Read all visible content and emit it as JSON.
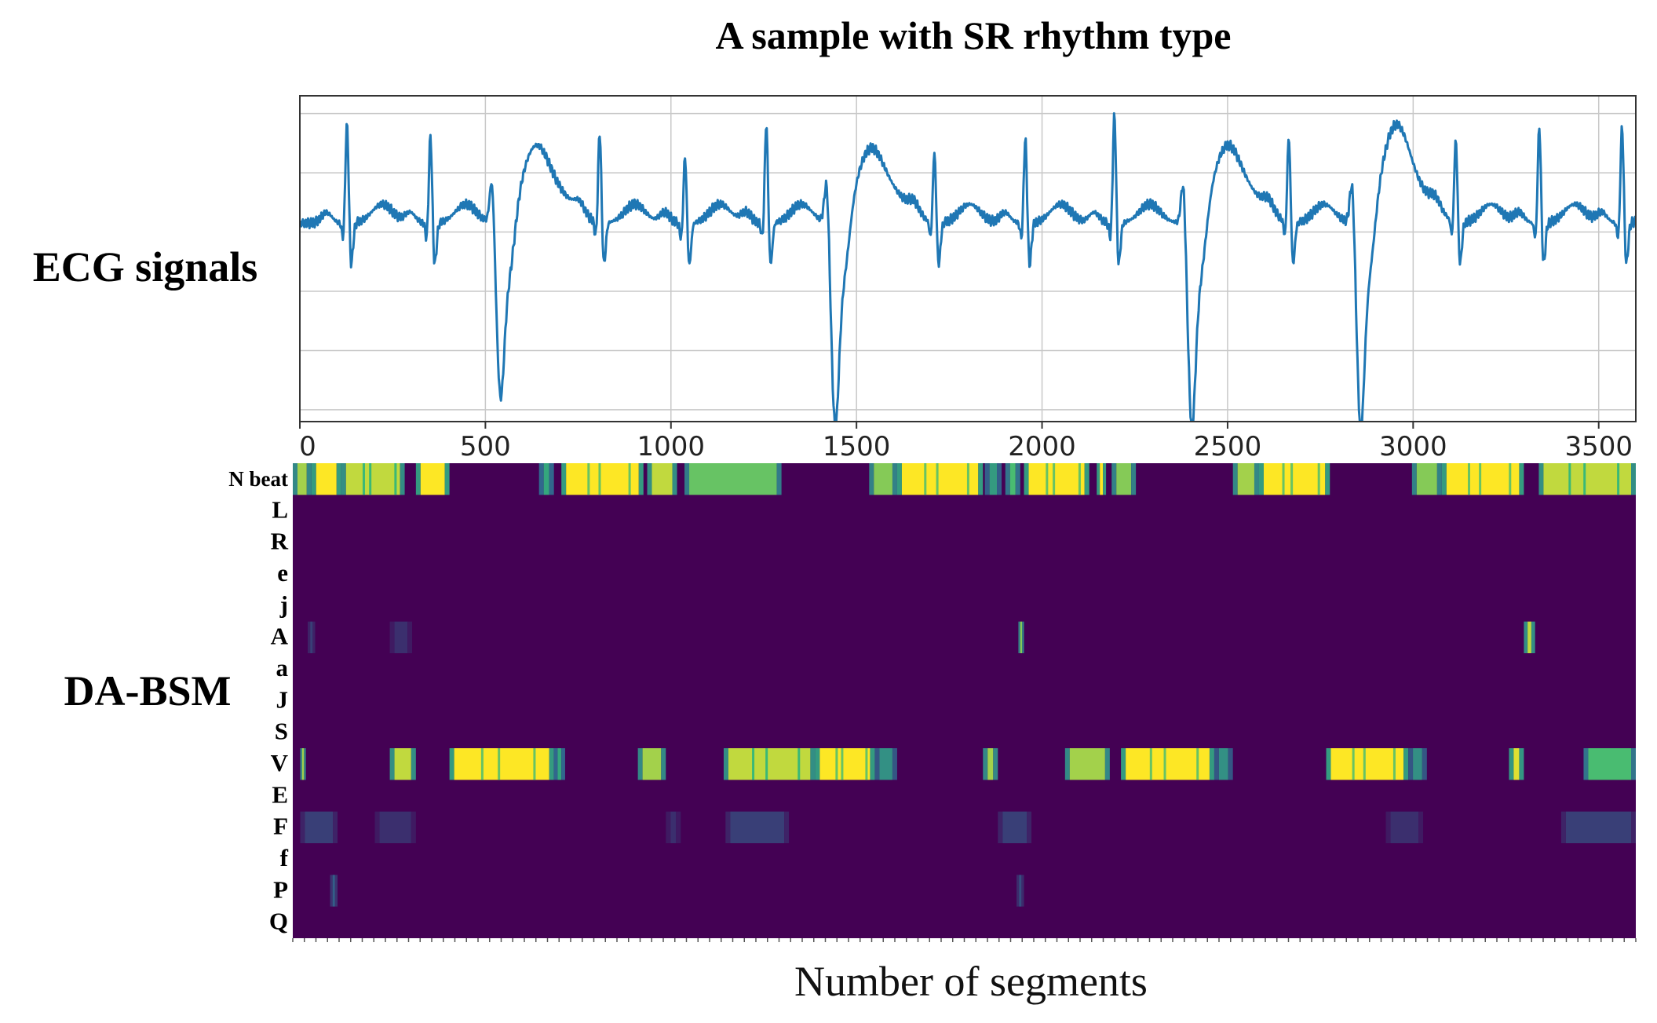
{
  "chart_data": [
    {
      "type": "line",
      "title": "A sample with SR rhythm type",
      "row_label": "ECG signals",
      "xlim": [
        0,
        3600
      ],
      "ylim": [
        -3.2,
        2.3
      ],
      "x_ticks": [
        0,
        500,
        1000,
        1500,
        2000,
        2500,
        3000,
        3500
      ],
      "x_tick_labels": [
        "0",
        "500",
        "1000",
        "1500",
        "2000",
        "2500",
        "3000",
        "3500"
      ],
      "y_gridlines": [
        2,
        1,
        0,
        -1,
        -2,
        -3
      ],
      "grid": true,
      "color": "#1f77b4",
      "baseline": 0.15,
      "normal_beats": [
        {
          "x": 127,
          "peak": 1.9
        },
        {
          "x": 352,
          "peak": 1.7
        },
        {
          "x": 808,
          "peak": 1.75
        },
        {
          "x": 1038,
          "peak": 1.35
        },
        {
          "x": 1257,
          "peak": 1.9
        },
        {
          "x": 1710,
          "peak": 1.4
        },
        {
          "x": 1955,
          "peak": 1.65
        },
        {
          "x": 2195,
          "peak": 2.05
        },
        {
          "x": 2665,
          "peak": 1.65
        },
        {
          "x": 3115,
          "peak": 1.6
        },
        {
          "x": 3340,
          "peak": 1.85
        },
        {
          "x": 3563,
          "peak": 1.85
        }
      ],
      "ventricular_beats": [
        {
          "x": 540,
          "min": -2.4,
          "pre": 1.0,
          "t_peak": 1.4
        },
        {
          "x": 1442,
          "min": -2.9,
          "pre": 1.0,
          "t_peak": 1.35
        },
        {
          "x": 2403,
          "min": -2.9,
          "pre": 1.0,
          "t_peak": 1.4
        },
        {
          "x": 2858,
          "min": -2.95,
          "pre": 1.0,
          "t_peak": 1.75
        }
      ]
    },
    {
      "type": "heatmap",
      "row_label": "DA-BSM",
      "xlabel": "Number of segments",
      "rows": [
        "N beat",
        "L",
        "R",
        "e",
        "j",
        "A",
        "a",
        "J",
        "S",
        "V",
        "E",
        "F",
        "f",
        "P",
        "Q"
      ],
      "x_extent": [
        0,
        3600
      ],
      "colormap": {
        "low": "#440154",
        "mid": "#31688e",
        "high_mid": "#35b779",
        "high": "#fde725"
      },
      "bands": {
        "N beat": [
          [
            0,
            50,
            0.85
          ],
          [
            50,
            130,
            1.0
          ],
          [
            130,
            300,
            0.9
          ],
          [
            330,
            420,
            1.0
          ],
          [
            660,
            700,
            0.6
          ],
          [
            720,
            940,
            1.0
          ],
          [
            950,
            1030,
            0.9
          ],
          [
            1050,
            1310,
            0.75
          ],
          [
            1545,
            1620,
            0.8
          ],
          [
            1620,
            1850,
            1.0
          ],
          [
            1855,
            1900,
            0.55
          ],
          [
            1910,
            1950,
            0.7
          ],
          [
            1960,
            2135,
            1.0
          ],
          [
            2195,
            2260,
            0.8
          ],
          [
            2155,
            2180,
            1.0
          ],
          [
            2520,
            2590,
            0.85
          ],
          [
            2590,
            2780,
            1.0
          ],
          [
            3000,
            3080,
            0.8
          ],
          [
            3080,
            3300,
            1.0
          ],
          [
            3340,
            3600,
            0.9
          ]
        ],
        "A": [
          [
            40,
            60,
            0.2
          ],
          [
            260,
            320,
            0.15
          ],
          [
            1945,
            1960,
            0.8
          ],
          [
            3300,
            3330,
            0.9
          ]
        ],
        "V": [
          [
            20,
            35,
            0.85
          ],
          [
            260,
            330,
            0.9
          ],
          [
            420,
            700,
            1.0
          ],
          [
            700,
            730,
            0.6
          ],
          [
            925,
            1000,
            0.85
          ],
          [
            1155,
            1400,
            0.9
          ],
          [
            1400,
            1560,
            1.0
          ],
          [
            1560,
            1620,
            0.5
          ],
          [
            1850,
            1890,
            0.85
          ],
          [
            2070,
            2190,
            0.85
          ],
          [
            2220,
            2470,
            1.0
          ],
          [
            2470,
            2520,
            0.5
          ],
          [
            2770,
            2990,
            1.0
          ],
          [
            2990,
            3040,
            0.5
          ],
          [
            3260,
            3300,
            0.95
          ],
          [
            3460,
            3600,
            0.7
          ]
        ],
        "F": [
          [
            20,
            120,
            0.2
          ],
          [
            220,
            330,
            0.15
          ],
          [
            1000,
            1040,
            0.15
          ],
          [
            1160,
            1330,
            0.2
          ],
          [
            1890,
            1980,
            0.2
          ],
          [
            2930,
            3030,
            0.15
          ],
          [
            3400,
            3600,
            0.2
          ]
        ],
        "P": [
          [
            100,
            120,
            0.3
          ],
          [
            1940,
            1960,
            0.25
          ]
        ]
      }
    }
  ]
}
